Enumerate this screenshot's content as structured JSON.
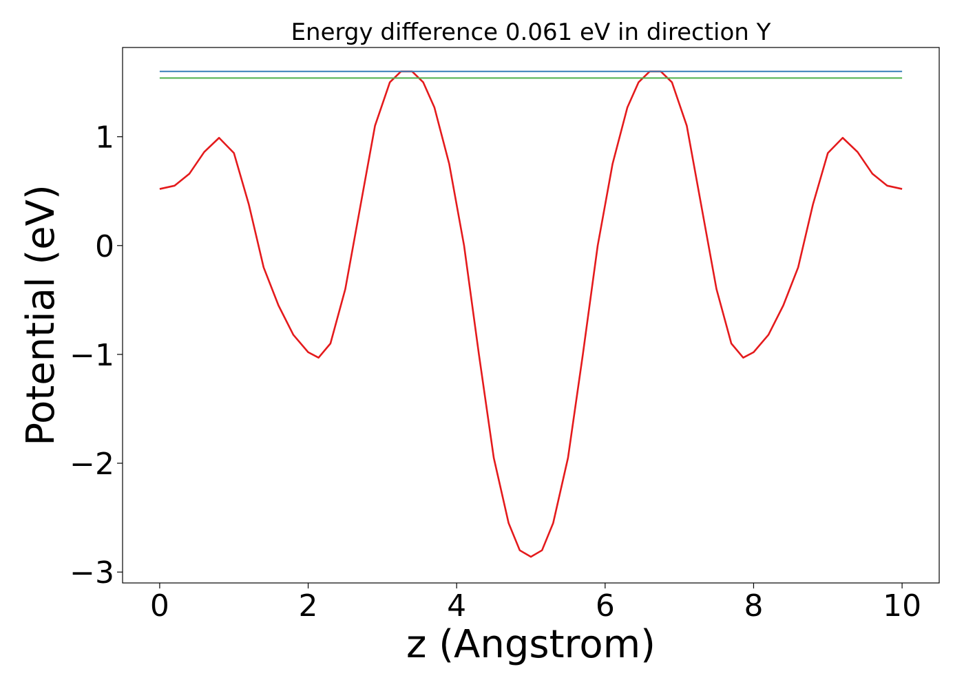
{
  "chart_data": {
    "type": "line",
    "title": "Energy difference 0.061 eV in direction Y",
    "xlabel": "z (Angstrom)",
    "ylabel": "Potential (eV)",
    "xlim": [
      -0.5,
      10.5
    ],
    "ylim": [
      -3.1,
      1.82
    ],
    "grid": false,
    "xticks": [
      0,
      2,
      4,
      6,
      8,
      10
    ],
    "yticks": [
      -3,
      -2,
      -1,
      0,
      1
    ],
    "xtick_labels": [
      "0",
      "2",
      "4",
      "6",
      "8",
      "10"
    ],
    "ytick_labels": [
      "−3",
      "−2",
      "−1",
      "0",
      "1"
    ],
    "series": [
      {
        "color": "#e41a1c",
        "x": [
          0,
          0.2,
          0.4,
          0.6,
          0.8,
          1.0,
          1.2,
          1.4,
          1.6,
          1.8,
          2.0,
          2.14,
          2.3,
          2.5,
          2.7,
          2.9,
          3.1,
          3.25,
          3.4,
          3.55,
          3.7,
          3.9,
          4.1,
          4.3,
          4.5,
          4.7,
          4.85,
          5.0,
          5.15,
          5.3,
          5.5,
          5.7,
          5.9,
          6.1,
          6.3,
          6.45,
          6.6,
          6.75,
          6.9,
          7.1,
          7.3,
          7.5,
          7.7,
          7.86,
          8.0,
          8.2,
          8.4,
          8.6,
          8.8,
          9.0,
          9.2,
          9.4,
          9.6,
          9.8,
          10.0
        ],
        "values": [
          0.52,
          0.55,
          0.66,
          0.86,
          0.99,
          0.85,
          0.38,
          -0.2,
          -0.55,
          -0.82,
          -0.98,
          -1.03,
          -0.9,
          -0.4,
          0.35,
          1.1,
          1.5,
          1.6,
          1.6,
          1.5,
          1.27,
          0.75,
          0.0,
          -1.0,
          -1.95,
          -2.55,
          -2.8,
          -2.86,
          -2.8,
          -2.55,
          -1.95,
          -1.0,
          0.0,
          0.75,
          1.27,
          1.5,
          1.6,
          1.6,
          1.5,
          1.1,
          0.35,
          -0.4,
          -0.9,
          -1.03,
          -0.98,
          -0.82,
          -0.55,
          -0.2,
          0.38,
          0.85,
          0.99,
          0.86,
          0.66,
          0.55,
          0.52
        ]
      },
      {
        "color": "#377eb8",
        "x": [
          0,
          10
        ],
        "values": [
          1.6,
          1.6
        ]
      },
      {
        "color": "#4daf4a",
        "x": [
          0,
          10
        ],
        "values": [
          1.539,
          1.539
        ]
      }
    ]
  }
}
